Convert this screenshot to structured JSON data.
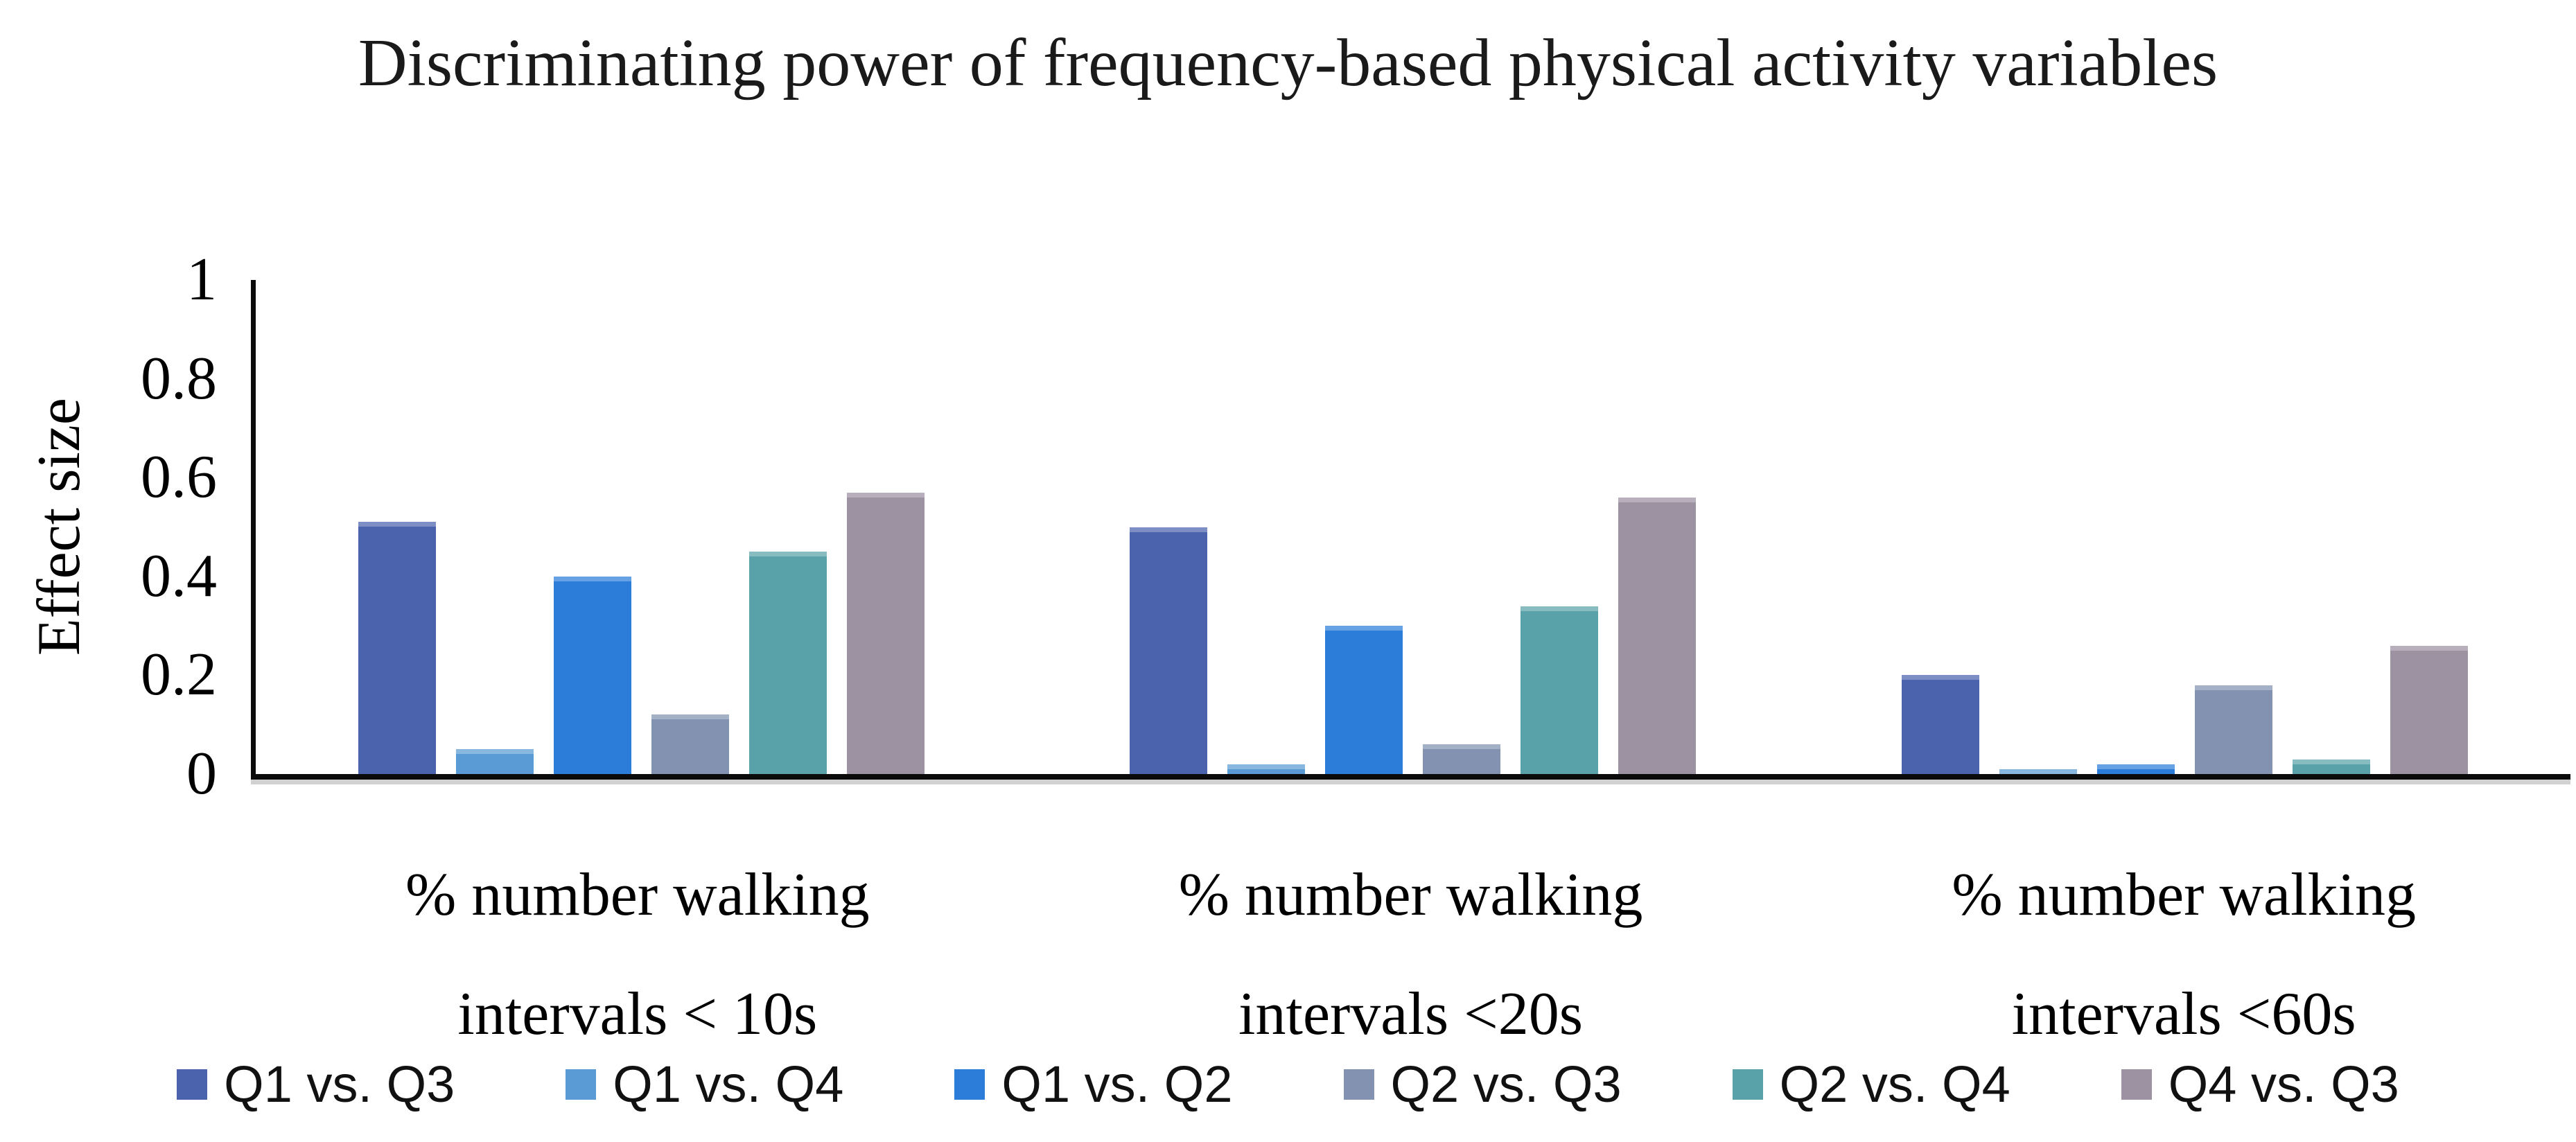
{
  "chart_data": {
    "type": "bar",
    "title": "Discriminating power of frequency-based physical activity variables",
    "ylabel": "Effect size",
    "xlabel": "",
    "ylim": [
      0,
      1
    ],
    "yticks": [
      "1",
      "0.8",
      "0.6",
      "0.4",
      "0.2",
      "0"
    ],
    "grid": false,
    "legend_position": "bottom",
    "categories": [
      "% number walking intervals < 10s",
      "% number walking intervals <20s",
      "% number walking intervals <60s"
    ],
    "series": [
      {
        "name": "Q1 vs. Q3",
        "color": "#4b63ad",
        "values": [
          0.51,
          0.5,
          0.2
        ]
      },
      {
        "name": "Q1 vs. Q4",
        "color": "#5b9bd5",
        "values": [
          0.05,
          0.02,
          0.01
        ]
      },
      {
        "name": "Q1 vs. Q2",
        "color": "#2b7dd9",
        "values": [
          0.4,
          0.3,
          0.02
        ]
      },
      {
        "name": "Q2 vs. Q3",
        "color": "#8292b0",
        "values": [
          0.12,
          0.06,
          0.18
        ]
      },
      {
        "name": "Q2 vs. Q4",
        "color": "#59a2a9",
        "values": [
          0.45,
          0.34,
          0.03
        ]
      },
      {
        "name": "Q4 vs. Q3",
        "color": "#9c92a2",
        "values": [
          0.57,
          0.56,
          0.26
        ]
      }
    ]
  }
}
